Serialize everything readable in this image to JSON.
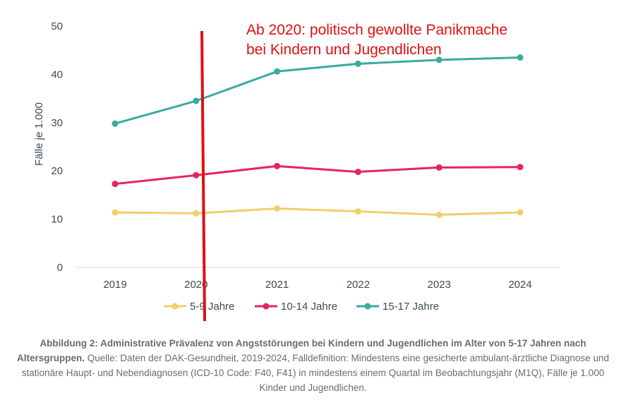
{
  "chart_data": {
    "type": "line",
    "x": [
      "2019",
      "2020",
      "2021",
      "2022",
      "2023",
      "2024"
    ],
    "series": [
      {
        "name": "5-9 Jahre",
        "color": "#f0cf6a",
        "values": [
          11.4,
          11.2,
          12.2,
          11.6,
          10.9,
          11.4
        ]
      },
      {
        "name": "10-14 Jahre",
        "color": "#e8245c",
        "values": [
          17.3,
          19.1,
          21.0,
          19.8,
          20.7,
          20.8
        ]
      },
      {
        "name": "15-17 Jahre",
        "color": "#3aab9d",
        "values": [
          29.8,
          34.5,
          40.6,
          42.2,
          43.0,
          43.5
        ]
      }
    ],
    "ylabel": "Fälle je 1.000",
    "ylim": [
      0,
      50
    ],
    "yticks": [
      "0",
      "10",
      "20",
      "30",
      "40",
      "50"
    ],
    "legend_position": "bottom",
    "annotation": {
      "line1": "Ab 2020: politisch gewollte Panikmache",
      "line2": "bei Kindern und Jugendlichen",
      "color": "#e01010"
    }
  },
  "caption": {
    "bold": "Abbildung 2: Administrative Prävalenz von Angststörungen bei Kindern und Jugendlichen im Alter von 5-17 Jahren nach Altersgruppen.",
    "text": " Quelle: Daten der DAK-Gesundheit, 2019-2024, Falldefinition: Mindestens eine gesicherte ambulant-ärztliche Diagnose und stationäre Haupt- und Nebendiagnosen (ICD-10 Code: F40, F41) in mindestens einem Quartal im Beobachtungsjahr (M1Q), Fälle je 1.000 Kinder und Jugendlichen."
  }
}
